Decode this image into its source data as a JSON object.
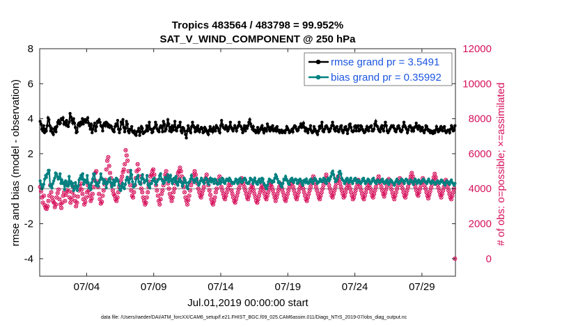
{
  "chart_data": {
    "type": "line",
    "title": "Tropics 483564 / 483798 = 99.952%",
    "subtitle": "SAT_V_WIND_COMPONENT @ 250 hPa",
    "xlabel": "Jul.01,2019 00:00:00 start",
    "ylabel": "rmse and bias (model - observation)",
    "ylabel_right": "# of obs: o=possible; ×=assimilated",
    "footnote": "data file: /Users/raeder/DAI/ATM_forcXX/CAM6_setup/f.e21.FHIST_BGC.f09_025.CAM6assim.011/Diags_NTrS_2019-07/obs_diag_output.nc",
    "xlim": [
      0.5,
      31.5
    ],
    "ylim": [
      -5,
      8
    ],
    "ylim_right": [
      -1000,
      12000
    ],
    "xticks": [
      4,
      9,
      14,
      19,
      24,
      29
    ],
    "xtick_labels": [
      "07/04",
      "07/09",
      "07/14",
      "07/19",
      "07/24",
      "07/29"
    ],
    "yticks": [
      -4,
      -2,
      0,
      2,
      4,
      6,
      8
    ],
    "yticks_right": [
      0,
      2000,
      4000,
      6000,
      8000,
      10000,
      12000
    ],
    "colors": {
      "rmse": "#000000",
      "bias": "#008080",
      "obs": "#d6105b",
      "zero": "#b3b3b3",
      "legend_text": "#1b55e0"
    },
    "legend": [
      {
        "name": "rmse grand pr = 3.5491",
        "color": "#000000"
      },
      {
        "name": "bias grand pr = 0.35992",
        "color": "#008080"
      }
    ],
    "rmse": [
      3.85,
      3.7,
      3.4,
      3.3,
      3.6,
      3.2,
      3.4,
      3.3,
      3.6,
      4.05,
      3.95,
      3.6,
      3.3,
      3.45,
      3.2,
      3.1,
      3.4,
      3.5,
      3.25,
      3.55,
      3.8,
      3.9,
      3.7,
      3.75,
      4.0,
      3.95,
      4.05,
      3.7,
      3.8,
      3.65,
      3.9,
      3.6,
      3.55,
      3.8,
      4.3,
      4.1,
      3.9,
      3.75,
      4.0,
      3.75,
      3.5,
      3.2,
      3.25,
      3.65,
      3.75,
      3.6,
      3.8,
      3.7,
      4.0,
      3.7,
      3.9,
      3.95,
      3.8,
      3.95,
      4.05,
      3.75,
      3.6,
      3.4,
      3.7,
      3.2,
      3.4,
      3.6,
      3.75,
      3.3,
      3.55,
      3.85,
      3.8,
      3.95,
      3.8,
      3.6,
      3.55,
      3.3,
      3.65,
      3.75,
      3.6,
      3.8,
      3.75,
      3.55,
      3.65,
      3.5,
      3.6,
      3.55,
      3.4,
      3.3,
      3.25,
      3.55,
      3.7,
      3.6,
      3.9,
      3.4,
      3.2,
      3.4,
      3.8,
      3.7,
      3.95,
      3.5,
      3.25,
      3.45,
      3.85,
      3.7,
      3.3,
      3.2,
      3.4,
      3.35,
      3.55,
      3.25,
      3.2,
      3.3,
      3.1,
      3.05,
      3.25,
      3.3,
      3.45,
      3.05,
      3.25,
      3.55,
      3.45,
      3.15,
      3.2,
      3.25,
      3.3,
      3.6,
      3.3,
      3.55,
      3.8,
      3.4,
      3.4,
      3.2,
      3.25,
      3.45,
      3.5,
      3.8,
      3.65,
      3.4,
      3.3,
      3.25,
      3.5,
      3.6,
      3.5,
      3.25,
      3.85,
      3.7,
      3.3,
      3.4,
      3.6,
      3.95,
      3.7,
      3.3,
      3.5,
      3.25,
      3.6,
      3.35,
      3.55,
      3.85,
      3.35,
      3.3,
      3.5,
      3.6,
      3.55,
      3.8,
      3.3,
      3.2,
      3.5,
      3.45,
      3.3,
      3.1,
      2.9,
      3.3,
      3.6,
      3.45,
      3.3,
      3.2,
      3.55,
      3.8,
      3.6,
      3.5,
      3.25,
      3.5,
      3.3,
      3.6,
      3.4,
      3.25,
      3.4,
      3.5,
      3.45,
      3.2,
      3.25,
      3.5,
      3.4,
      3.3,
      3.2,
      3.1,
      3.35,
      3.55,
      3.3,
      3.4,
      3.25,
      3.5,
      3.35,
      3.3,
      3.6,
      3.5,
      3.45,
      3.3,
      3.2,
      3.6,
      3.9,
      3.65,
      3.5,
      3.45,
      3.4,
      3.6,
      3.5,
      3.3,
      3.4,
      3.55,
      3.8,
      3.5,
      3.4,
      3.3,
      3.45,
      3.6,
      3.45,
      3.3,
      3.5,
      3.6,
      3.8,
      3.6,
      3.55,
      3.4,
      3.2,
      3.45,
      3.6,
      3.3,
      3.55,
      3.45,
      3.6,
      3.8,
      3.95,
      3.7,
      3.55,
      3.4,
      3.55,
      3.3,
      3.35,
      3.2,
      3.3,
      3.5,
      3.2,
      3.3,
      3.4,
      3.5,
      3.6,
      3.35,
      3.2,
      3.45,
      3.4,
      3.3,
      3.7,
      3.55,
      3.4,
      3.3,
      3.5,
      3.4,
      3.6,
      3.3,
      3.35,
      3.45,
      3.3,
      3.55,
      3.3,
      3.35,
      3.2,
      3.3,
      3.35,
      3.2,
      3.25,
      3.3,
      3.2,
      3.35,
      3.55,
      3.45,
      3.35,
      3.2,
      3.25,
      3.3,
      3.4,
      3.25,
      3.5,
      3.6,
      3.55,
      3.4,
      3.3,
      3.35,
      3.5,
      3.55,
      3.7,
      3.5,
      3.6,
      3.75,
      3.5,
      3.3,
      3.45,
      3.3,
      3.2,
      3.4,
      3.4,
      3.6,
      3.3,
      3.2,
      3.25,
      3.55,
      3.4,
      3.3,
      3.2,
      3.1,
      3.3,
      3.55,
      3.45,
      3.6,
      3.8,
      3.3,
      3.25,
      3.4,
      3.55,
      3.6,
      3.5,
      3.4,
      3.25,
      3.3,
      3.45,
      3.6,
      3.8,
      3.6,
      3.4,
      3.3,
      3.5,
      3.55,
      3.3,
      3.25,
      3.4,
      3.55,
      3.6,
      3.3,
      3.2,
      3.35,
      3.5,
      3.55,
      3.35,
      3.15,
      3.4,
      3.65,
      3.7,
      3.5,
      3.3,
      3.25,
      3.3,
      3.55,
      3.6,
      3.3,
      3.55,
      3.6,
      3.3,
      3.35,
      3.6,
      3.55,
      3.4,
      3.3,
      3.2,
      3.25,
      3.4,
      3.55,
      3.35,
      3.3,
      3.5,
      3.55,
      3.6,
      3.3,
      3.3,
      3.4,
      3.7,
      3.85,
      3.6,
      3.55,
      3.4,
      3.3,
      3.25,
      3.5,
      3.6,
      3.4,
      3.3,
      3.6,
      3.8,
      3.6,
      3.3,
      3.2,
      3.3,
      3.4,
      3.5,
      3.6,
      3.55,
      3.6,
      3.45,
      3.3,
      3.25,
      3.4,
      3.55,
      3.6,
      3.45,
      3.3,
      3.25,
      3.35,
      3.55,
      3.8,
      3.6,
      3.5,
      3.4,
      3.2,
      3.35,
      3.55,
      3.6,
      3.5,
      3.3,
      3.45,
      3.3,
      3.5,
      3.55,
      3.75,
      3.5,
      3.4,
      3.6,
      3.55,
      3.3,
      3.4,
      3.5,
      3.3,
      3.2,
      3.35,
      3.6,
      3.55,
      3.4,
      3.3,
      3.35,
      3.2,
      3.3,
      3.2,
      3.15,
      3.3,
      3.2,
      3.35,
      3.55,
      3.4,
      3.25,
      3.3,
      3.45,
      3.55,
      3.35,
      3.3,
      3.5,
      3.55,
      3.3,
      3.2,
      3.3,
      3.35,
      3.35,
      3.2,
      3.4,
      3.6,
      3.5,
      3.3,
      3.35,
      3.6
    ],
    "bias": [
      0.45,
      0.25,
      0.0,
      0.1,
      0.25,
      0.55,
      0.75,
      0.65,
      0.85,
      1.05,
      1.05,
      0.15,
      0.2,
      0.05,
      0.3,
      0.45,
      0.6,
      0.9,
      0.85,
      0.7,
      0.55,
      0.6,
      0.85,
      0.3,
      0.5,
      0.3,
      0.35,
      -0.05,
      0.45,
      0.4,
      0.15,
      0.15,
      0.7,
      0.3,
      0.4,
      0.15,
      0.3,
      -0.1,
      0.0,
      0.35,
      0.15,
      -0.1,
      0.15,
      0.5,
      0.6,
      0.75,
      0.55,
      0.85,
      0.25,
      0.5,
      0.4,
      0.35,
      0.75,
      0.35,
      0.05,
      0.2,
      -0.05,
      0.35,
      0.55,
      0.85,
      0.85,
      0.4,
      0.2,
      0.3,
      0.15,
      0.35,
      0.5,
      0.85,
      0.6,
      0.55,
      0.3,
      0.5,
      0.4,
      0.05,
      0.3,
      0.4,
      0.55,
      0.6,
      0.35,
      0.1,
      0.3,
      0.5,
      0.2,
      0.4,
      0.6,
      0.55,
      0.45,
      0.2,
      -0.05,
      -0.1,
      0.15,
      0.3,
      0.05,
      0.0,
      0.25,
      0.5,
      0.65,
      0.5,
      0.35,
      0.55,
      1.05,
      0.8,
      0.4,
      0.1,
      0.15,
      0.25,
      0.55,
      0.65,
      0.75,
      0.4,
      0.3,
      0.25,
      0.6,
      0.8,
      0.55,
      0.35,
      0.45,
      0.45,
      0.75,
      0.25,
      0.15,
      0.05,
      0.3,
      0.3,
      0.45,
      0.55,
      0.6,
      0.4,
      0.25,
      0.4,
      0.5,
      0.55,
      0.75,
      0.85,
      0.55,
      0.45,
      0.3,
      0.35,
      0.65,
      0.5,
      0.55,
      0.8,
      0.4,
      0.6,
      0.75,
      0.45,
      0.3,
      0.55,
      0.6,
      0.4,
      0.7,
      0.3,
      0.2,
      0.4,
      0.55,
      0.45,
      0.35,
      0.15,
      0.3,
      0.6,
      0.5,
      0.35,
      0.1,
      0.0,
      0.35,
      0.4,
      0.55,
      0.75,
      0.55,
      0.5,
      0.35,
      0.45,
      0.55,
      0.6,
      0.35,
      0.2,
      0.3,
      0.45,
      0.6,
      0.5,
      0.4,
      0.3,
      0.5,
      0.6,
      0.55,
      0.35,
      0.25,
      0.45,
      0.6,
      0.4,
      0.55,
      0.5,
      0.3,
      0.55,
      0.5,
      0.35,
      0.25,
      0.3,
      0.5,
      0.3,
      0.4,
      0.6,
      0.55,
      0.35,
      0.3,
      0.45,
      0.55,
      0.5,
      0.45,
      0.6,
      0.5,
      0.4,
      0.3,
      0.35,
      0.3,
      0.4,
      0.55,
      0.5,
      0.3,
      0.35,
      0.55,
      0.6,
      0.4,
      0.35,
      0.45,
      0.55,
      0.6,
      0.5,
      0.35,
      0.3,
      0.3,
      0.4,
      0.6,
      0.55,
      0.5,
      0.3,
      0.45,
      0.6,
      0.4,
      0.3,
      0.25,
      0.45,
      0.55,
      0.35,
      0.4,
      0.6,
      0.55,
      0.3,
      0.2,
      0.1,
      0.0,
      0.2,
      0.4,
      0.55,
      0.5,
      0.45,
      0.35,
      0.45,
      0.4,
      0.6,
      0.8,
      0.7,
      0.55,
      0.35,
      0.4,
      0.3,
      0.15,
      0.1,
      0.3,
      0.55,
      0.5,
      0.7,
      0.55,
      0.45,
      0.3,
      0.25,
      0.45,
      0.55,
      0.6,
      0.4,
      0.35,
      0.5,
      0.55,
      0.5,
      0.3,
      0.35,
      0.5,
      0.55,
      0.45,
      0.3,
      0.2,
      0.45,
      0.5,
      0.35,
      0.55,
      0.4,
      0.3,
      0.35,
      0.5,
      0.55,
      0.4,
      0.3,
      0.45,
      0.6,
      0.55,
      0.45,
      0.3,
      0.35,
      0.4,
      0.55,
      0.5,
      0.4,
      0.45,
      0.6,
      0.55,
      0.35,
      0.3,
      0.5,
      0.6,
      0.45,
      0.55,
      0.7,
      0.9,
      1.0,
      0.8,
      0.6,
      0.4,
      0.45,
      0.55,
      0.7,
      0.95,
      1.0,
      0.85,
      0.6,
      0.5,
      0.45,
      0.3,
      0.4,
      0.55,
      0.6,
      0.45,
      0.35,
      0.5,
      0.6,
      0.4,
      0.3,
      0.45,
      0.55,
      0.6,
      0.45,
      0.35,
      0.5,
      0.45,
      0.35,
      0.3,
      0.4,
      0.55,
      0.6,
      0.45,
      0.3,
      0.35,
      0.45,
      0.55,
      0.5,
      0.35,
      0.3,
      0.4,
      0.55,
      0.6,
      0.45,
      0.35,
      0.3,
      0.45,
      0.5,
      0.4,
      0.35,
      0.4,
      0.5,
      0.55,
      0.4,
      0.3,
      0.35,
      0.45,
      0.5,
      0.3,
      0.25,
      0.4,
      0.5,
      0.45,
      0.35,
      0.3,
      0.2,
      0.35,
      0.45,
      0.55,
      0.4,
      0.3,
      0.35,
      0.45,
      0.55,
      0.5,
      0.4,
      0.3,
      0.45,
      0.55,
      0.5,
      0.35,
      0.3,
      0.4,
      0.5,
      0.45,
      0.35,
      0.25,
      0.4,
      0.55,
      0.45,
      0.3,
      0.35,
      0.5,
      0.4,
      0.3,
      0.35,
      0.45,
      0.55,
      0.5,
      0.4,
      0.35,
      0.3,
      0.45,
      0.55,
      0.4,
      0.35,
      0.3,
      0.45,
      0.4,
      0.35,
      0.25,
      0.3,
      0.4,
      0.45,
      0.35,
      0.3,
      0.4,
      0.5,
      0.45,
      0.35,
      0.3,
      0.2,
      0.35,
      0.45,
      0.4,
      0.3,
      0.25,
      0.4,
      0.5,
      0.35,
      0.3,
      0.2,
      0.3
    ],
    "obs_count": [
      4100,
      3850,
      3500,
      3200,
      3600,
      3050,
      2900,
      2850,
      3000,
      3300,
      3600,
      4200,
      3800,
      3500,
      3300,
      3200,
      2950,
      3100,
      3500,
      3750,
      3950,
      3400,
      3100,
      2900,
      3200,
      3600,
      3800,
      3300,
      3650,
      3900,
      4200,
      3850,
      3500,
      3200,
      3400,
      3800,
      4100,
      3600,
      3300,
      3000,
      3200,
      3550,
      3900,
      4150,
      4300,
      3950,
      3700,
      3400,
      3100,
      3250,
      3500,
      3800,
      4200,
      3900,
      3600,
      3300,
      3450,
      3700,
      4100,
      4500,
      4900,
      5000,
      4400,
      4100,
      3700,
      3400,
      3150,
      3250,
      3600,
      3900,
      4250,
      4500,
      5100,
      5600,
      5800,
      5300,
      4900,
      4600,
      4200,
      3900,
      3700,
      3600,
      3400,
      3300,
      3500,
      3800,
      4100,
      4300,
      4500,
      4700,
      4950,
      5100,
      5400,
      6200,
      5900,
      5600,
      5000,
      4600,
      4200,
      3900,
      3600,
      3500,
      3800,
      4200,
      4600,
      5000,
      5400,
      5100,
      4700,
      4300,
      4000,
      3800,
      3500,
      3300,
      3100,
      3200,
      3500,
      3800,
      4100,
      4400,
      4700,
      4800,
      5000,
      5100,
      4800,
      4500,
      4200,
      3900,
      3600,
      3300,
      3100,
      3400,
      3700,
      3900,
      4200,
      4500,
      4800,
      5000,
      4700,
      4300,
      4000,
      3700,
      3500,
      3300,
      3500,
      3800,
      4000,
      4300,
      4500,
      4700,
      4900,
      5000,
      5200,
      5000,
      4700,
      4400,
      4100,
      3800,
      3500,
      3300,
      3100,
      3350,
      3600,
      3900,
      4200,
      4400,
      4600,
      4800,
      5000,
      4800,
      4500,
      4300,
      4000,
      3800,
      3600,
      3500,
      3700,
      3900,
      4100,
      4400,
      4600,
      4800,
      4500,
      4200,
      3900,
      3650,
      3400,
      3200,
      3100,
      3300,
      3500,
      3800,
      4000,
      4300,
      4500,
      4700,
      4400,
      4100,
      3900,
      3700,
      3500,
      3400,
      3600,
      3800,
      4000,
      4200,
      4400,
      4200,
      3900,
      3700,
      3500,
      3300,
      3200,
      3400,
      3600,
      3800,
      4000,
      4200,
      4400,
      4600,
      4500,
      4300,
      4100,
      3900,
      3700,
      3500,
      3400,
      3600,
      3800,
      4000,
      4200,
      4100,
      3900,
      3700,
      3500,
      3300,
      3200,
      3400,
      3600,
      3800,
      4000,
      4200,
      4100,
      3900,
      3700,
      3500,
      3400,
      3600,
      3800,
      4000,
      4200,
      4300,
      4100,
      3900,
      3700,
      3500,
      3300,
      3500,
      3700,
      3900,
      4100,
      4300,
      4200,
      4000,
      3800,
      3600,
      3400,
      3300,
      3500,
      3700,
      3900,
      4100,
      4300,
      4500,
      4300,
      4100,
      3900,
      3700,
      3500,
      3400,
      3600,
      3800,
      4000,
      4200,
      4400,
      4200,
      4000,
      3800,
      3600,
      3400,
      3300,
      3500,
      3700,
      3900,
      4100,
      4300,
      4500,
      4700,
      4500,
      4300,
      4100,
      3900,
      3700,
      3500,
      3400,
      3600,
      3800,
      4000,
      4200,
      4400,
      4600,
      4800,
      4600,
      4400,
      4200,
      4000,
      3800,
      3600,
      3500,
      3700,
      3900,
      4100,
      4300,
      4500,
      4700,
      4500,
      4300,
      4100,
      3900,
      3700,
      3500,
      3600,
      3800,
      4000,
      4200,
      4400,
      4200,
      4000,
      3800,
      3600,
      3400,
      3500,
      3700,
      3900,
      4100,
      4300,
      4500,
      4300,
      4100,
      3900,
      3700,
      3500,
      3400,
      3600,
      3800,
      4000,
      4200,
      4400,
      4200,
      4000,
      3800,
      3600,
      3500,
      3700,
      3900,
      4100,
      4300,
      4500,
      4700,
      4500,
      4300,
      4100,
      3900,
      3700,
      3550,
      3750,
      3950,
      4150,
      4350,
      4550,
      4350,
      4150,
      3950,
      3750,
      3550,
      3400,
      3600,
      3800,
      4000,
      4200,
      4400,
      4600,
      4400,
      4200,
      4000,
      3800,
      3600,
      3500,
      3700,
      3900,
      4100,
      4300,
      4500,
      4700,
      4900,
      4700,
      4500,
      4300,
      4100,
      3900,
      3700,
      3600,
      3800,
      4000,
      4200,
      4400,
      4600,
      4400,
      4200,
      4000,
      3800,
      3600,
      3450,
      3650,
      3850,
      4050,
      4250,
      4450,
      4650,
      4850,
      4650,
      4450,
      4250,
      4050,
      3850,
      3650,
      3500,
      3700,
      3900,
      4100,
      4300,
      4500,
      4300,
      4100,
      3900,
      3700,
      3500,
      3400,
      3600,
      3800,
      4000,
      0
    ]
  }
}
